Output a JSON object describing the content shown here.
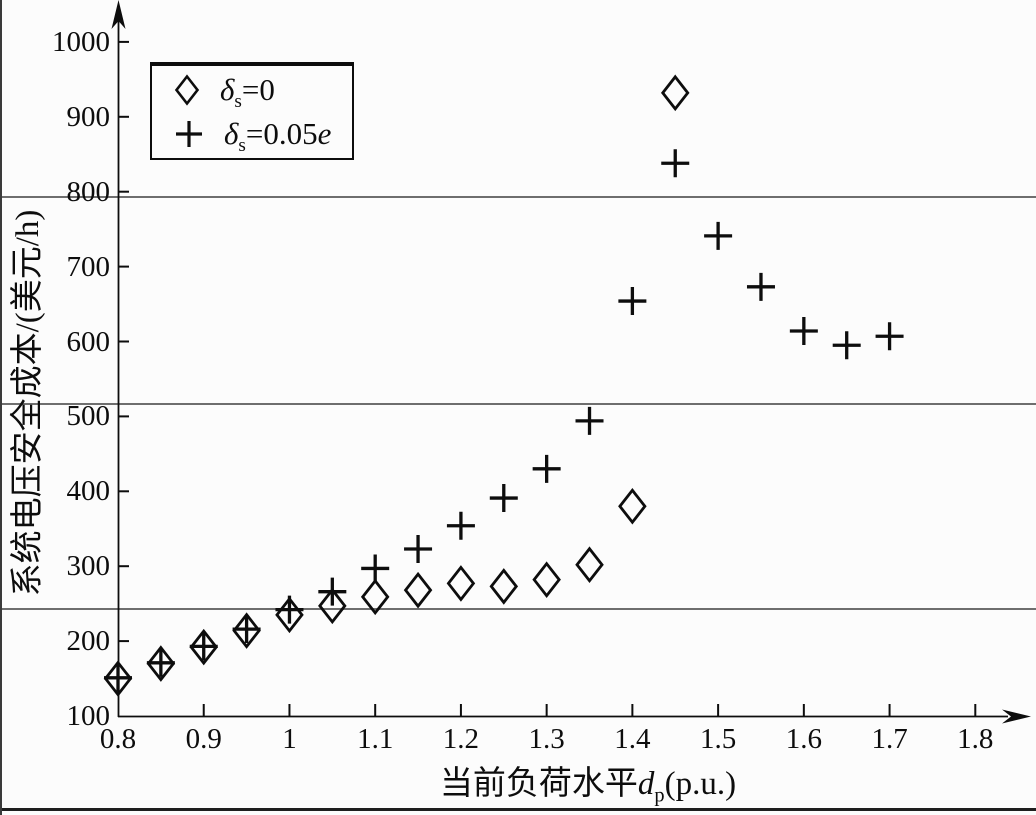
{
  "colors": {
    "ink": "#0d0d0d",
    "paper": "#fcfcfc",
    "scan_line_gray": "#6e6e6e"
  },
  "chart_data": {
    "type": "scatter",
    "title": "",
    "ylabel": "系统电压安全成本/(美元/h)",
    "xlabel": {
      "prefix": "当前负荷水平",
      "symbol": "d",
      "symbol_sub": "p",
      "unit": "(p.u.)"
    },
    "xlim": [
      0.8,
      1.85
    ],
    "ylim": [
      100,
      1060
    ],
    "grid": "off",
    "x_axis": {
      "tick_values": [
        0.8,
        0.9,
        1.0,
        1.1,
        1.2,
        1.3,
        1.4,
        1.5,
        1.6,
        1.7,
        1.8
      ],
      "tick_labels": [
        "0.8",
        "0.9",
        "1",
        "1.1",
        "1.2",
        "1.3",
        "1.4",
        "1.5",
        "1.6",
        "1.7",
        "1.8"
      ]
    },
    "y_axis": {
      "tick_values": [
        100,
        200,
        300,
        400,
        500,
        600,
        700,
        800,
        900,
        1000
      ],
      "tick_labels": [
        "100",
        "200",
        "300",
        "400",
        "500",
        "600",
        "700",
        "800",
        "900",
        "1000"
      ]
    },
    "legend": {
      "position": "top-left",
      "items": [
        {
          "marker": "diamond",
          "symbol": "δ",
          "sub": "s",
          "eq": "=0",
          "suffix": ""
        },
        {
          "marker": "plus",
          "symbol": "δ",
          "sub": "s",
          "eq": "=0.05",
          "suffix": "e"
        }
      ]
    },
    "series": [
      {
        "name": "δs=0",
        "marker": "diamond",
        "points": [
          [
            0.8,
            150
          ],
          [
            0.85,
            170
          ],
          [
            0.9,
            192
          ],
          [
            0.95,
            214
          ],
          [
            1.0,
            235
          ],
          [
            1.05,
            247
          ],
          [
            1.1,
            259
          ],
          [
            1.15,
            268
          ],
          [
            1.2,
            277
          ],
          [
            1.25,
            273
          ],
          [
            1.3,
            282
          ],
          [
            1.35,
            302
          ],
          [
            1.4,
            380
          ],
          [
            1.45,
            932
          ]
        ]
      },
      {
        "name": "δs=0.05e",
        "marker": "plus",
        "points": [
          [
            0.8,
            151
          ],
          [
            0.85,
            171
          ],
          [
            0.9,
            193
          ],
          [
            0.95,
            216
          ],
          [
            1.0,
            242
          ],
          [
            1.05,
            266
          ],
          [
            1.1,
            297
          ],
          [
            1.15,
            323
          ],
          [
            1.2,
            354
          ],
          [
            1.25,
            391
          ],
          [
            1.3,
            430
          ],
          [
            1.35,
            494
          ],
          [
            1.4,
            654
          ],
          [
            1.45,
            838
          ],
          [
            1.5,
            741
          ],
          [
            1.55,
            673
          ],
          [
            1.6,
            614
          ],
          [
            1.65,
            595
          ],
          [
            1.7,
            607
          ]
        ]
      }
    ]
  }
}
